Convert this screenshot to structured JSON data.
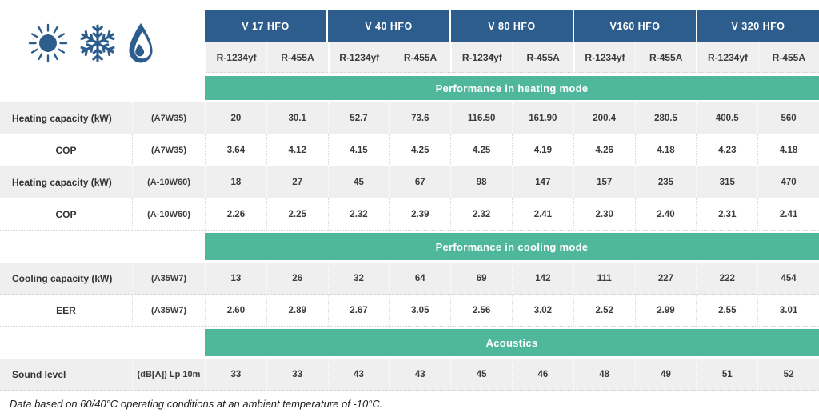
{
  "colors": {
    "header_blue": "#2c5d8d",
    "section_green": "#4fb89c",
    "row_gray": "#efeff0"
  },
  "icons": [
    {
      "name": "sun-icon",
      "meaning": "heating"
    },
    {
      "name": "snowflake-icon",
      "meaning": "cooling"
    },
    {
      "name": "droplet-icon",
      "meaning": "water"
    }
  ],
  "table": {
    "models": [
      "V 17 HFO",
      "V 40 HFO",
      "V 80 HFO",
      "V160 HFO",
      "V 320 HFO"
    ],
    "refrigerants": [
      "R-1234yf",
      "R-455A"
    ],
    "sections": [
      {
        "title": "Performance in heating mode",
        "rows": [
          {
            "label": "Heating capacity (kW)",
            "condition": "(A7W35)",
            "align": "left",
            "values": [
              "20",
              "30.1",
              "52.7",
              "73.6",
              "116.50",
              "161.90",
              "200.4",
              "280.5",
              "400.5",
              "560"
            ]
          },
          {
            "label": "COP",
            "condition": "(A7W35)",
            "align": "center",
            "values": [
              "3.64",
              "4.12",
              "4.15",
              "4.25",
              "4.25",
              "4.19",
              "4.26",
              "4.18",
              "4.23",
              "4.18"
            ]
          },
          {
            "label": "Heating capacity (kW)",
            "condition": "(A-10W60)",
            "align": "left",
            "values": [
              "18",
              "27",
              "45",
              "67",
              "98",
              "147",
              "157",
              "235",
              "315",
              "470"
            ]
          },
          {
            "label": "COP",
            "condition": "(A-10W60)",
            "align": "center",
            "values": [
              "2.26",
              "2.25",
              "2.32",
              "2.39",
              "2.32",
              "2.41",
              "2.30",
              "2.40",
              "2.31",
              "2.41"
            ]
          }
        ]
      },
      {
        "title": "Performance in cooling mode",
        "rows": [
          {
            "label": "Cooling capacity (kW)",
            "condition": "(A35W7)",
            "align": "left",
            "values": [
              "13",
              "26",
              "32",
              "64",
              "69",
              "142",
              "111",
              "227",
              "222",
              "454"
            ]
          },
          {
            "label": "EER",
            "condition": "(A35W7)",
            "align": "center",
            "values": [
              "2.60",
              "2.89",
              "2.67",
              "3.05",
              "2.56",
              "3.02",
              "2.52",
              "2.99",
              "2.55",
              "3.01"
            ]
          }
        ]
      },
      {
        "title": "Acoustics",
        "rows": [
          {
            "label": "Sound level",
            "condition": "(dB[A]) Lp 10m",
            "align": "left",
            "values": [
              "33",
              "33",
              "43",
              "43",
              "45",
              "46",
              "48",
              "49",
              "51",
              "52"
            ]
          }
        ]
      }
    ]
  },
  "footnote": "Data based on 60/40°C operating conditions at an ambient temperature of -10°C."
}
